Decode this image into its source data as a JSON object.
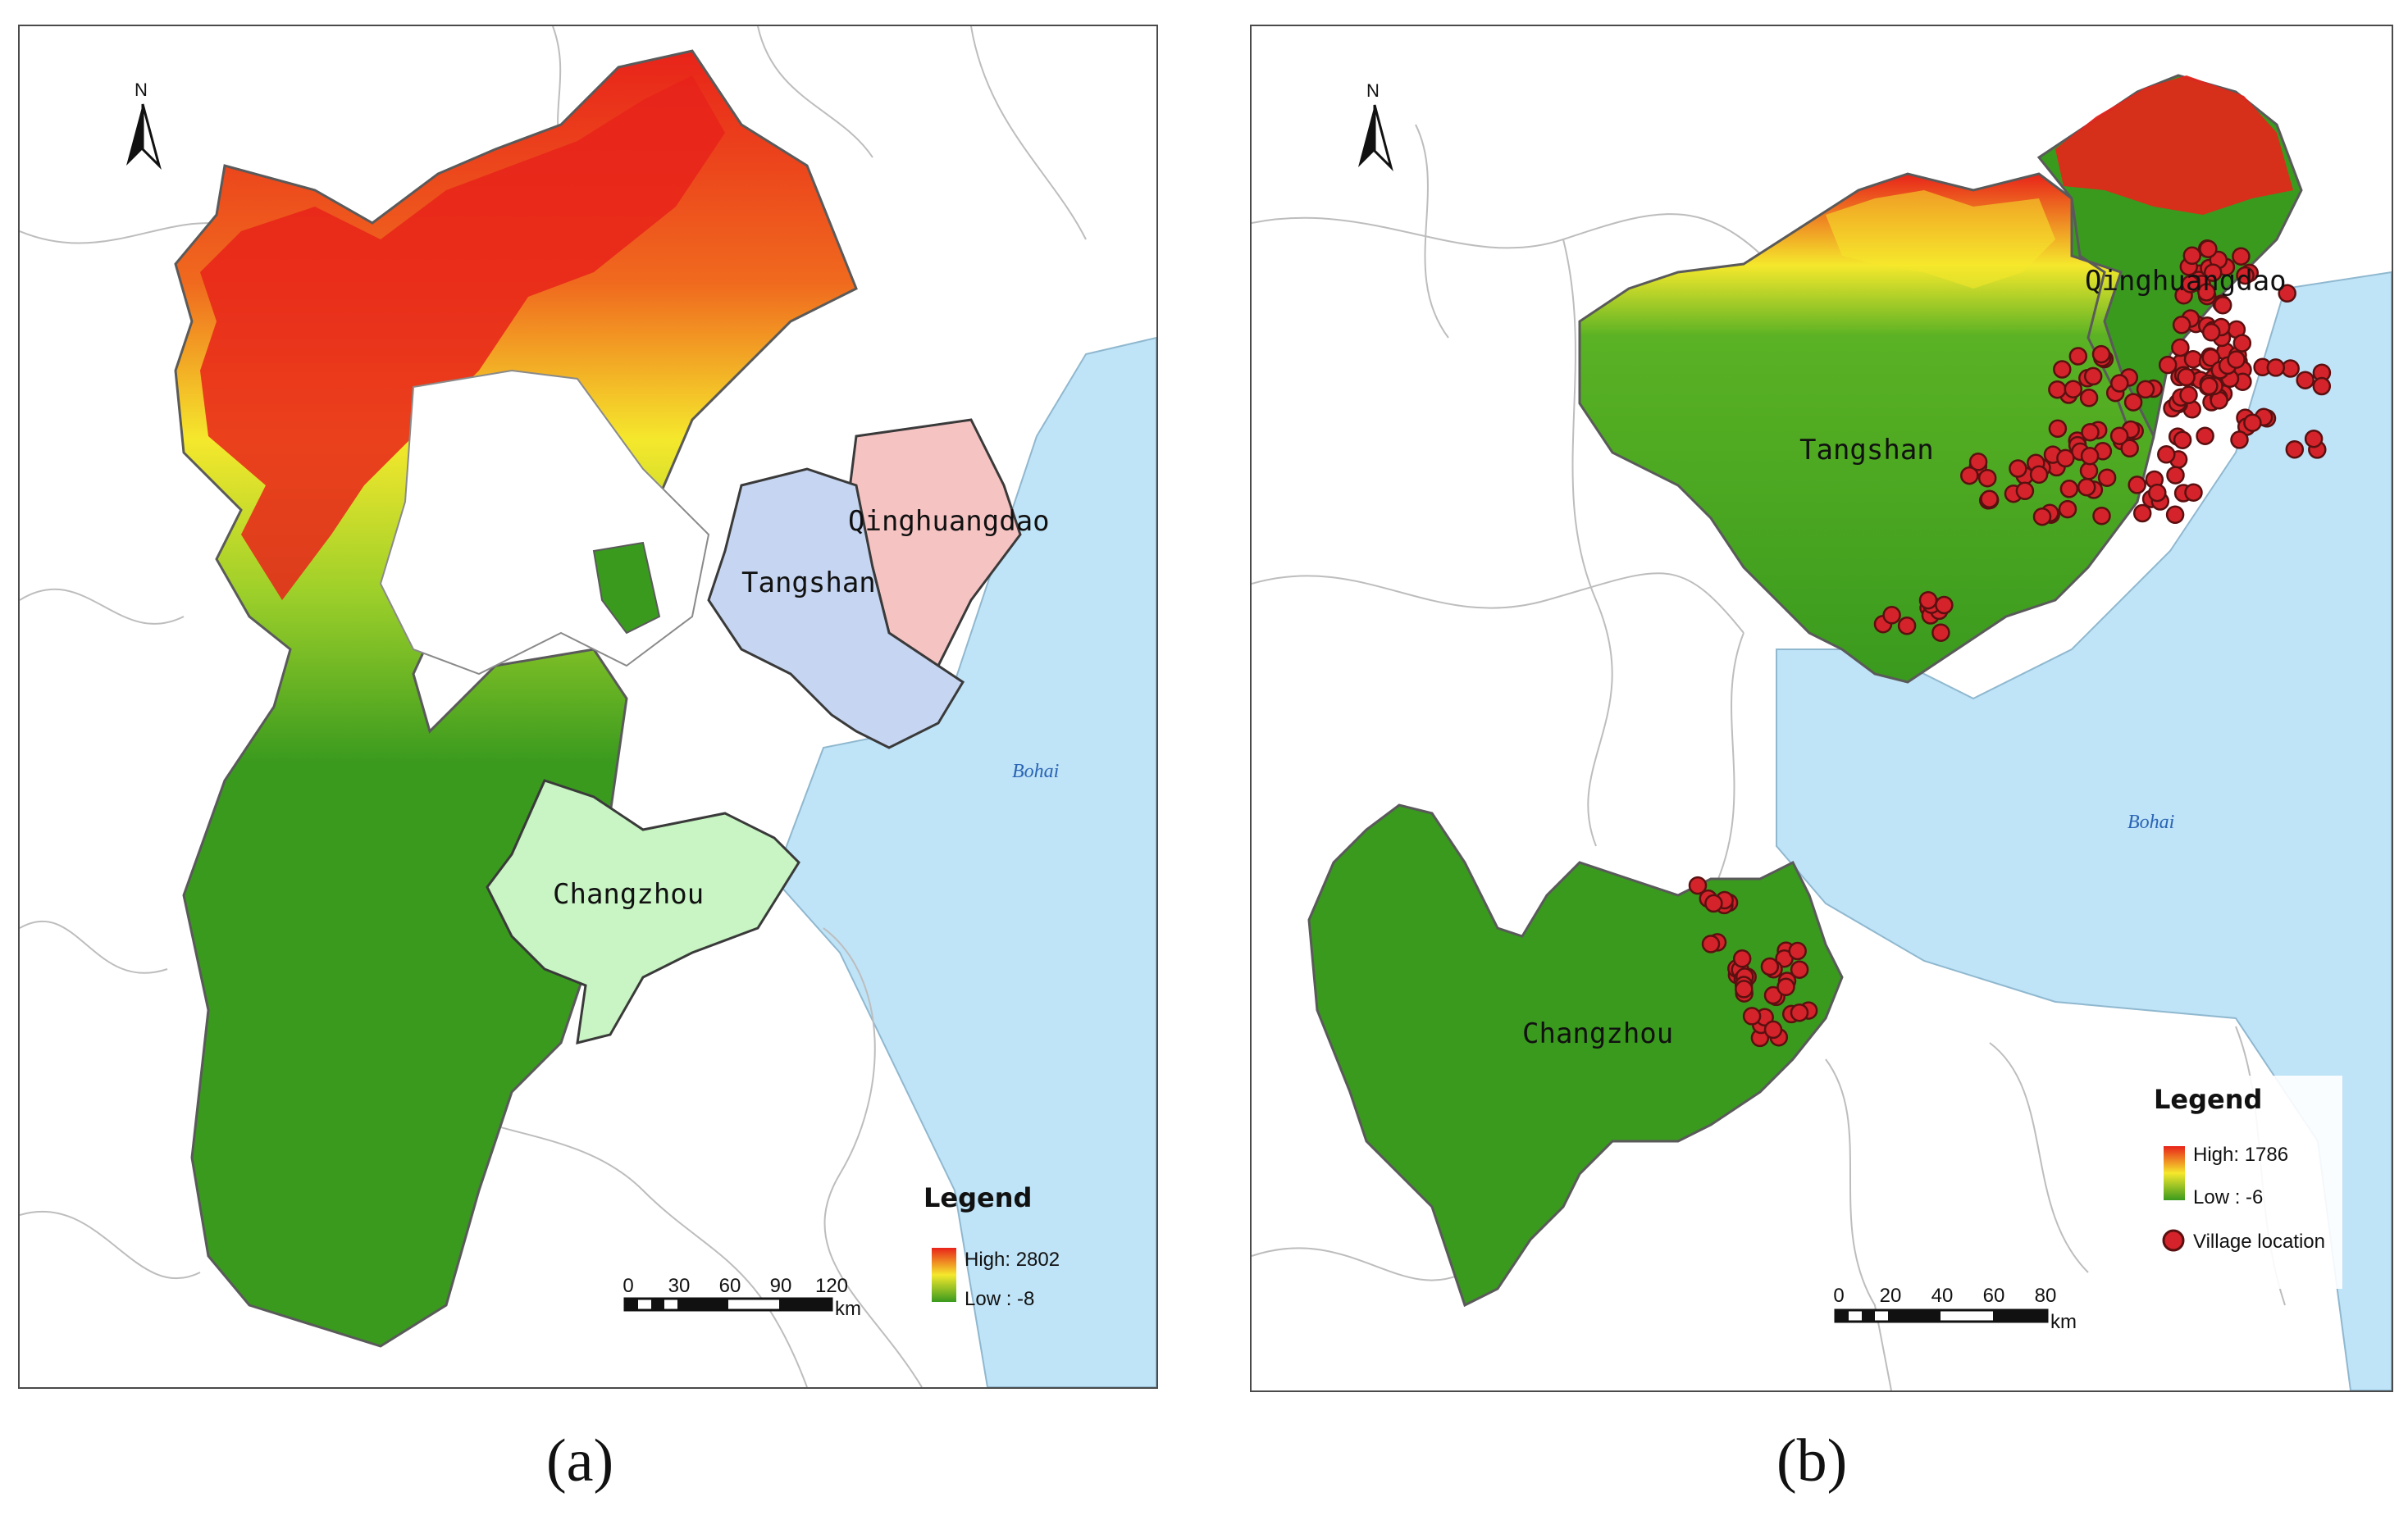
{
  "panels": [
    {
      "id": "a",
      "caption": "(a)",
      "north_label": "N",
      "regions": [
        "Qinghuangdao",
        "Tangshan",
        "Changzhou"
      ],
      "sea_label": "Bohai",
      "legend": {
        "title": "Legend",
        "high": "High: 2802",
        "low": "Low : -8"
      },
      "scale": {
        "ticks": [
          "0",
          "30",
          "60",
          "90",
          "120"
        ],
        "unit": "km"
      }
    },
    {
      "id": "b",
      "caption": "(b)",
      "north_label": "N",
      "regions": [
        "Qinghuangdao",
        "Tangshan",
        "Changzhou"
      ],
      "sea_label": "Bohai",
      "legend": {
        "title": "Legend",
        "high": "High: 1786",
        "low": "Low : -6",
        "point": "Village location"
      },
      "scale": {
        "ticks": [
          "0",
          "20",
          "40",
          "60",
          "80"
        ],
        "unit": "km"
      }
    }
  ],
  "colors": {
    "sea": "#bfe3f7",
    "elev_high": "#e8231a",
    "elev_mid": "#f5e82c",
    "elev_low": "#3a9a1e",
    "qinghuangdao_fill": "#f6c3c3",
    "tangshan_fill": "#c6d6f2",
    "changzhou_fill": "#c8f5c3",
    "village_point": "#d4232a"
  }
}
